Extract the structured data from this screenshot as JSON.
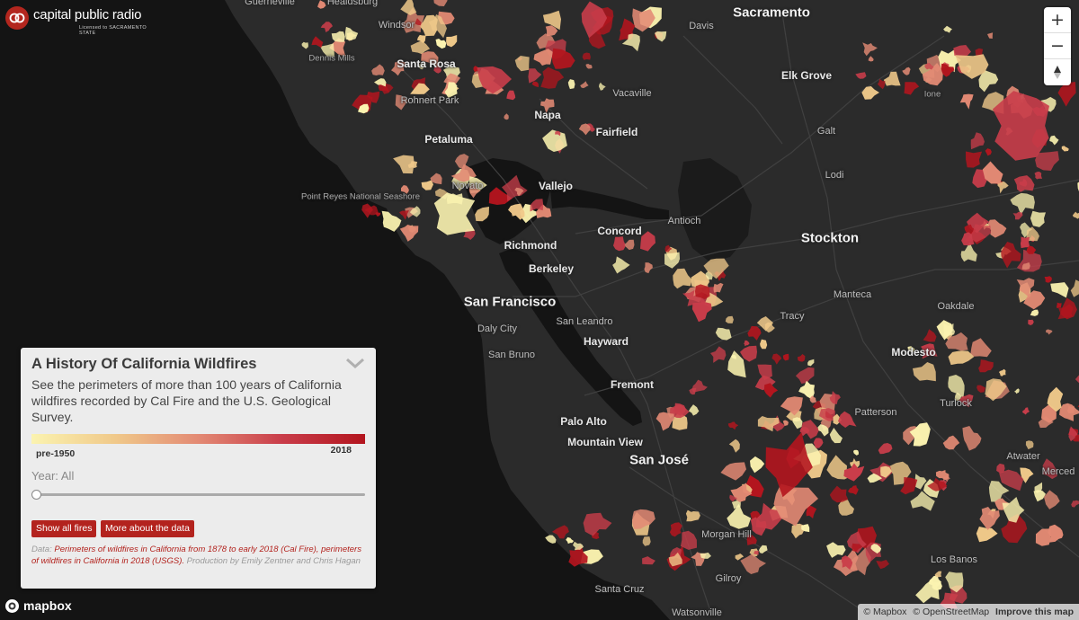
{
  "logo": {
    "name": "capital public radio",
    "tagline": "Licensed to SACRAMENTO STATE"
  },
  "zoom": {
    "in_label": "+",
    "out_label": "−",
    "reset_label": "▲"
  },
  "panel": {
    "title": "A History Of California Wildfires",
    "description": "See the perimeters of more than 100 years of California wildfires recorded by Cal Fire and the U.S. Geological Survey.",
    "legend_min": "pre-1950",
    "legend_max": "2018",
    "legend_colors": [
      "#fbf3b0",
      "#f0c98a",
      "#e38a74",
      "#c93d4a",
      "#b3151e"
    ],
    "year_label": "Year:",
    "year_value": "All",
    "slider_value": 0,
    "show_all_label": "Show all fires",
    "more_label": "More about the data",
    "credits_prefix": "Data: ",
    "credits_link1": "Perimeters of wildfires in California from 1878 to early 2018 (Cal Fire),",
    "credits_link2": "perimeters of wildfires in California in 2018 (USGS).",
    "credits_suffix": " Production by Emily Zentner and Chris Hagan"
  },
  "mapbox": {
    "wordmark": "mapbox"
  },
  "attribution": {
    "mapbox": "© Mapbox",
    "osm": "© OpenStreetMap",
    "improve": "Improve this map"
  },
  "map": {
    "water_color": "#141414",
    "land_color": "#2b2b2b",
    "cities": [
      {
        "name": "Sacramento",
        "size": "big"
      },
      {
        "name": "Santa Rosa",
        "size": "med"
      },
      {
        "name": "Davis",
        "size": "sm"
      },
      {
        "name": "Windsor",
        "size": "sm"
      },
      {
        "name": "Healdsburg",
        "size": "sm"
      },
      {
        "name": "Guerneville",
        "size": "sm"
      },
      {
        "name": "Dennis Mills",
        "size": "xs"
      },
      {
        "name": "Elk Grove",
        "size": "med"
      },
      {
        "name": "Rohnert Park",
        "size": "sm"
      },
      {
        "name": "Napa",
        "size": "med"
      },
      {
        "name": "Vacaville",
        "size": "sm"
      },
      {
        "name": "Ione",
        "size": "xs"
      },
      {
        "name": "Galt",
        "size": "sm"
      },
      {
        "name": "Fairfield",
        "size": "med"
      },
      {
        "name": "Petaluma",
        "size": "med"
      },
      {
        "name": "Lodi",
        "size": "sm"
      },
      {
        "name": "Novato",
        "size": "sm"
      },
      {
        "name": "Vallejo",
        "size": "med"
      },
      {
        "name": "Point Reyes National Seashore",
        "size": "xs"
      },
      {
        "name": "Antioch",
        "size": "sm"
      },
      {
        "name": "Concord",
        "size": "med"
      },
      {
        "name": "Stockton",
        "size": "big"
      },
      {
        "name": "Richmond",
        "size": "med"
      },
      {
        "name": "Berkeley",
        "size": "med"
      },
      {
        "name": "Manteca",
        "size": "sm"
      },
      {
        "name": "San Francisco",
        "size": "big"
      },
      {
        "name": "Oakdale",
        "size": "sm"
      },
      {
        "name": "San Leandro",
        "size": "sm"
      },
      {
        "name": "Tracy",
        "size": "sm"
      },
      {
        "name": "Daly City",
        "size": "sm"
      },
      {
        "name": "Hayward",
        "size": "med"
      },
      {
        "name": "Modesto",
        "size": "med"
      },
      {
        "name": "San Bruno",
        "size": "sm"
      },
      {
        "name": "Fremont",
        "size": "med"
      },
      {
        "name": "Turlock",
        "size": "sm"
      },
      {
        "name": "Patterson",
        "size": "sm"
      },
      {
        "name": "Palo Alto",
        "size": "med"
      },
      {
        "name": "Mountain View",
        "size": "med"
      },
      {
        "name": "San José",
        "size": "big"
      },
      {
        "name": "Atwater",
        "size": "sm"
      },
      {
        "name": "Merced",
        "size": "sm"
      },
      {
        "name": "Morgan Hill",
        "size": "sm"
      },
      {
        "name": "Los Banos",
        "size": "sm"
      },
      {
        "name": "Gilroy",
        "size": "sm"
      },
      {
        "name": "Santa Cruz",
        "size": "sm"
      },
      {
        "name": "Watsonville",
        "size": "sm"
      }
    ]
  }
}
